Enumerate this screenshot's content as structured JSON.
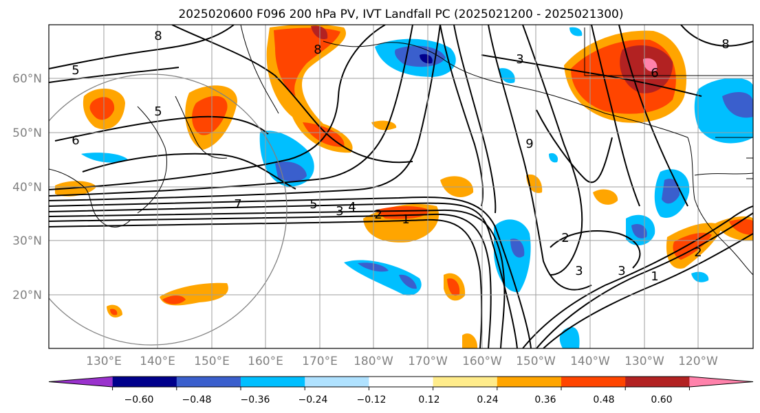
{
  "title": "2025020600 F096 200 hPa PV, IVT Landfall PC (2025021200 - 2025021300)",
  "map": {
    "lat_labels": [
      "60°N",
      "50°N",
      "40°N",
      "30°N",
      "20°N"
    ],
    "lon_labels": [
      "130°E",
      "140°E",
      "150°E",
      "160°E",
      "170°E",
      "180°W",
      "170°W",
      "160°W",
      "150°W",
      "140°W",
      "130°W",
      "120°W"
    ],
    "contour_labels": [
      "8",
      "8",
      "5",
      "5",
      "6",
      "7",
      "5",
      "3",
      "4",
      "2",
      "1",
      "3",
      "9",
      "2",
      "3",
      "3",
      "1",
      "2",
      "6",
      "8"
    ]
  },
  "colorbar": {
    "tick_labels": [
      "−0.60",
      "−0.48",
      "−0.36",
      "−0.24",
      "−0.12",
      "0.12",
      "0.24",
      "0.36",
      "0.48",
      "0.60"
    ],
    "colors": [
      "#9a32cd",
      "#00008b",
      "#3a5fcd",
      "#00bfff",
      "#b0e2ff",
      "#ffffff",
      "#ffec8b",
      "#ffa500",
      "#ff4500",
      "#b22222",
      "#ff82ab"
    ]
  }
}
